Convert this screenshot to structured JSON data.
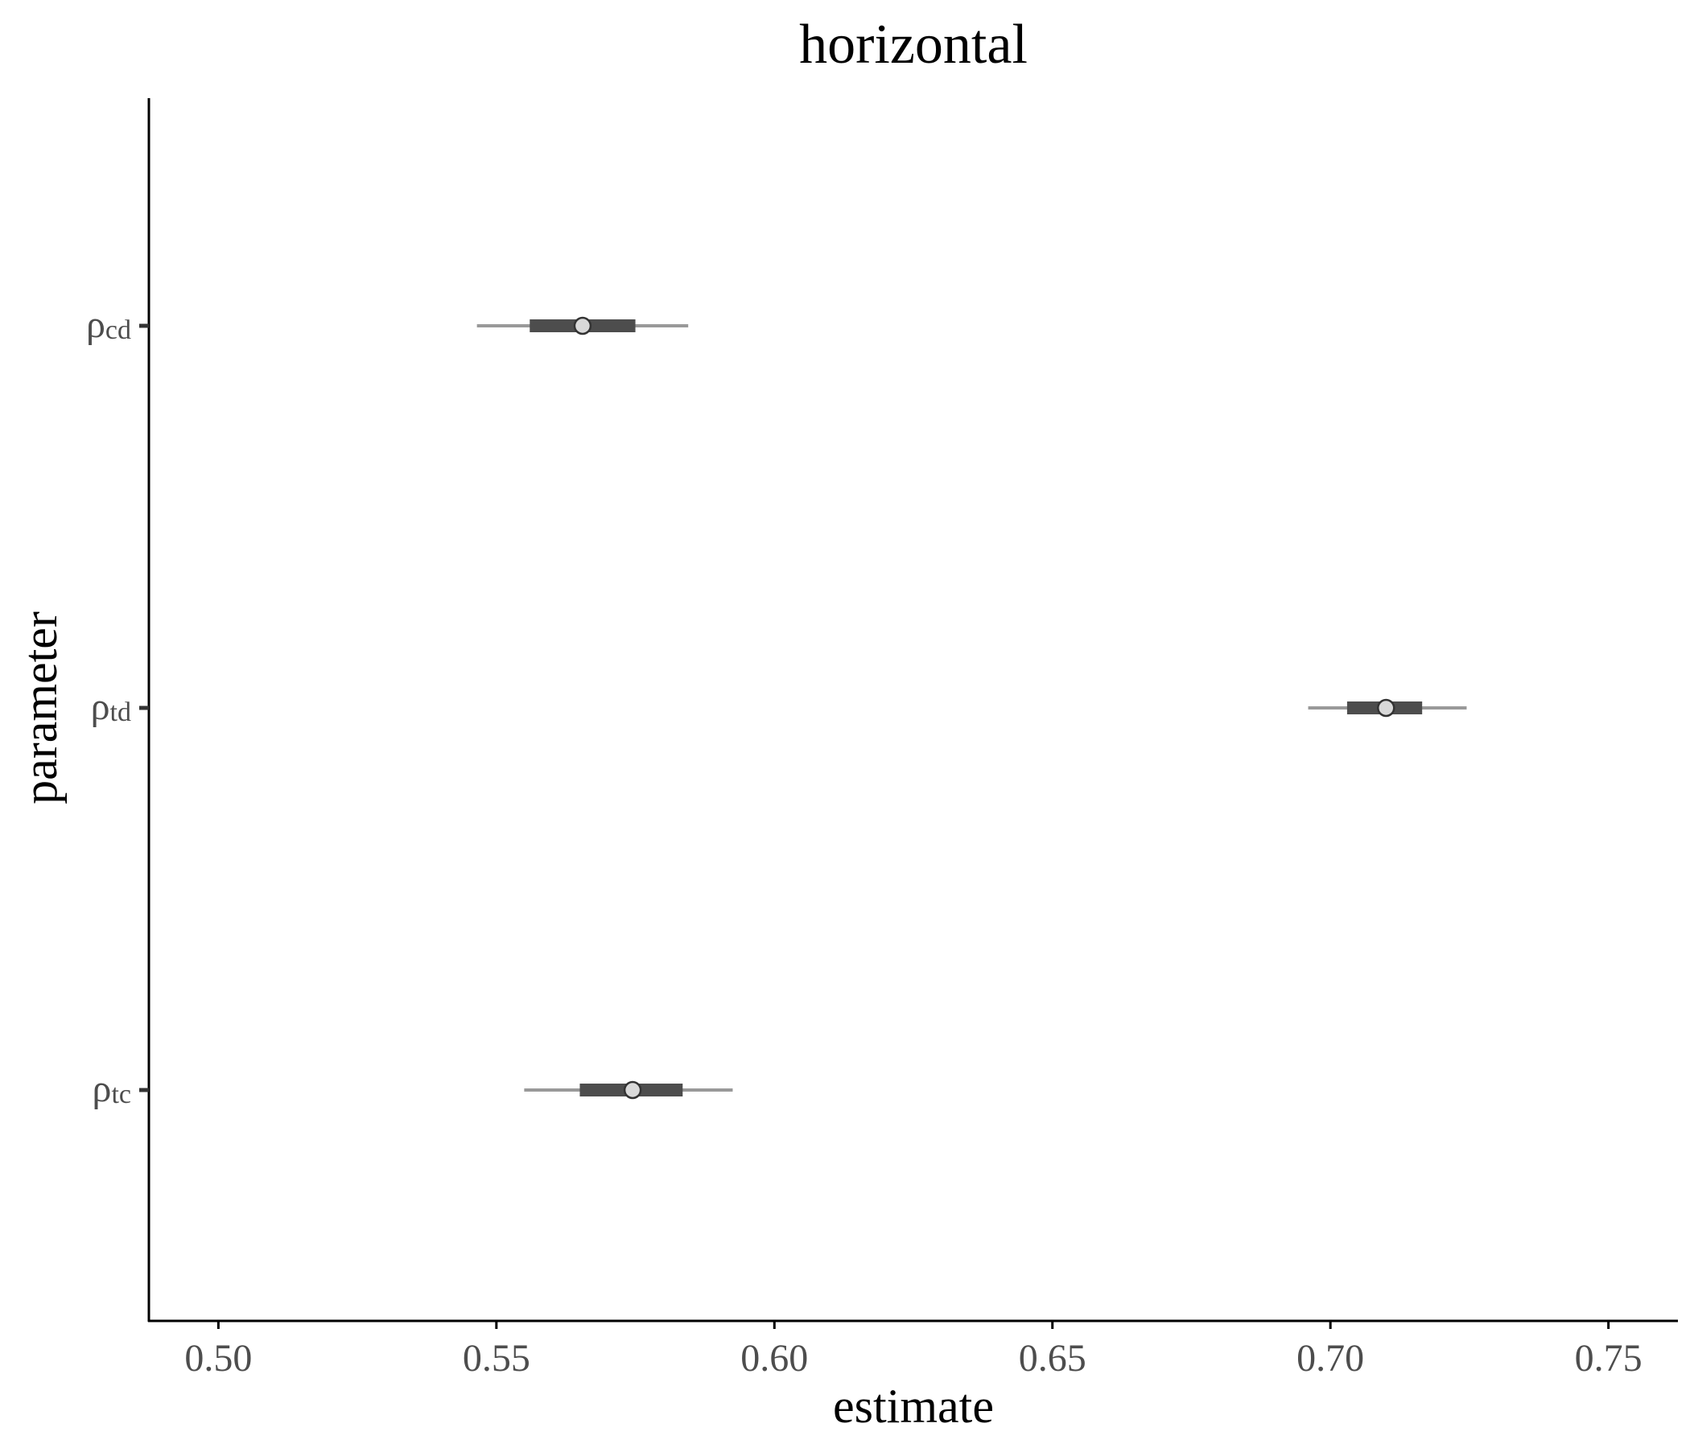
{
  "chart_data": {
    "type": "pointinterval",
    "title": "horizontal",
    "xlabel": "estimate",
    "ylabel": "parameter",
    "xlim": [
      0.4875,
      0.7625
    ],
    "xticks": [
      "0.50",
      "0.55",
      "0.60",
      "0.65",
      "0.70",
      "0.75"
    ],
    "tick_symbol": "ρ",
    "categories": [
      {
        "symbol": "ρ",
        "subscript": "cd"
      },
      {
        "symbol": "ρ",
        "subscript": "td"
      },
      {
        "symbol": "ρ",
        "subscript": "tc"
      }
    ],
    "estimates": [
      0.5655,
      0.71,
      0.5745
    ],
    "inner_interval": [
      [
        0.556,
        0.575
      ],
      [
        0.703,
        0.7165
      ],
      [
        0.565,
        0.5835
      ]
    ],
    "outer_interval": [
      [
        0.5465,
        0.5845
      ],
      [
        0.696,
        0.7245
      ],
      [
        0.555,
        0.5925
      ]
    ],
    "grid": false,
    "legend": "none",
    "colors": {
      "outer_interval": "#999999",
      "inner_interval": "#4d4d4d",
      "point_fill": "#d9d9d9",
      "point_stroke": "#333333",
      "axis": "#000000",
      "tick_text": "#4d4d4d"
    }
  }
}
